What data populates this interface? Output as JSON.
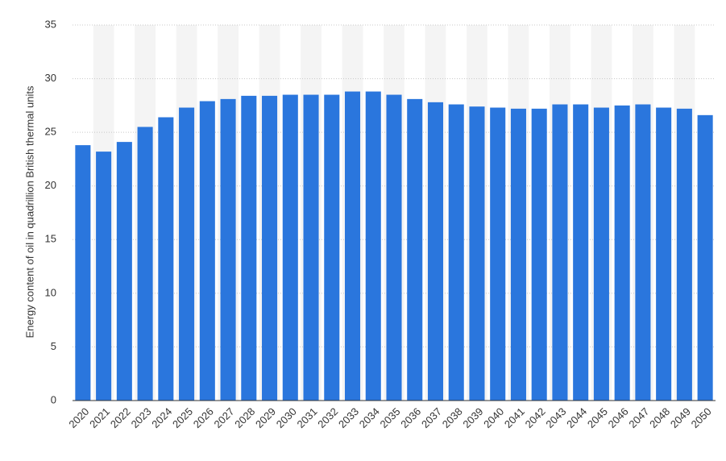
{
  "chart_data": {
    "type": "bar",
    "y_label": "Energy content of oil in quadrillion British thermal units",
    "categories": [
      "2020",
      "2021",
      "2022",
      "2023",
      "2024",
      "2025",
      "2026",
      "2027",
      "2028",
      "2029",
      "2030",
      "2031",
      "2032",
      "2033",
      "2034",
      "2035",
      "2036",
      "2037",
      "2038",
      "2039",
      "2040",
      "2041",
      "2042",
      "2043",
      "2044",
      "2045",
      "2046",
      "2047",
      "2048",
      "2049",
      "2050"
    ],
    "values": [
      23.8,
      23.2,
      24.1,
      25.5,
      26.4,
      27.3,
      27.9,
      28.1,
      28.4,
      28.4,
      28.5,
      28.5,
      28.5,
      28.8,
      28.8,
      28.5,
      28.1,
      27.8,
      27.6,
      27.4,
      27.3,
      27.2,
      27.2,
      27.6,
      27.6,
      27.3,
      27.5,
      27.6,
      27.3,
      27.2,
      26.6
    ],
    "color": "#2a76dd",
    "ylim": [
      0,
      35
    ],
    "yticks": [
      0,
      5,
      10,
      15,
      20,
      25,
      30,
      35
    ],
    "grid": true
  }
}
